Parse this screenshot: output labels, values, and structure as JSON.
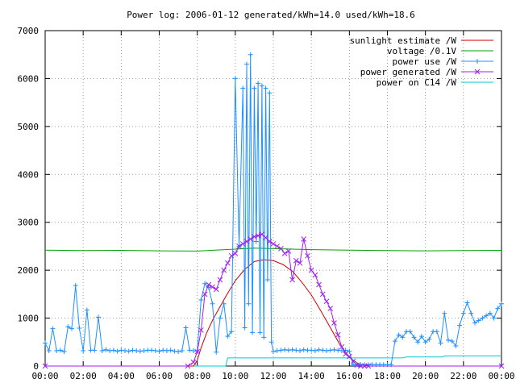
{
  "chart_data": {
    "type": "line",
    "title": "Power log: 2006-01-12 generated/kWh=14.0 used/kWh=18.6",
    "xlim": [
      0,
      24
    ],
    "ylim": [
      0,
      7000
    ],
    "xticks": [
      0,
      2,
      4,
      6,
      8,
      10,
      12,
      14,
      16,
      18,
      20,
      22,
      24
    ],
    "xtick_labels": [
      "00:00",
      "02:00",
      "04:00",
      "06:00",
      "08:00",
      "10:00",
      "12:00",
      "14:00",
      "16:00",
      "18:00",
      "20:00",
      "22:00",
      "00:00"
    ],
    "yticks": [
      0,
      1000,
      2000,
      3000,
      4000,
      5000,
      6000,
      7000
    ],
    "ytick_labels": [
      "0",
      "1000",
      "2000",
      "3000",
      "4000",
      "5000",
      "6000",
      "7000"
    ],
    "legend_position": "top-right",
    "series": [
      {
        "name": "sunlight estimate /W",
        "color": "#cc0000",
        "marker": "none",
        "x": [
          0,
          7.8,
          8.0,
          8.2,
          8.5,
          8.8,
          9.0,
          9.5,
          10.0,
          10.5,
          11.0,
          11.5,
          12.0,
          12.5,
          13.0,
          13.5,
          14.0,
          14.5,
          15.0,
          15.5,
          16.0,
          16.5,
          17.0,
          24
        ],
        "y": [
          0,
          0,
          120,
          380,
          700,
          950,
          1100,
          1450,
          1780,
          2020,
          2180,
          2220,
          2200,
          2120,
          1980,
          1750,
          1480,
          1150,
          800,
          450,
          180,
          40,
          0,
          0
        ]
      },
      {
        "name": "voltage /0.1V",
        "color": "#00a000",
        "marker": "none",
        "x": [
          0,
          2,
          4,
          6,
          8,
          10,
          11,
          12,
          13,
          14,
          16,
          18,
          20,
          22,
          24
        ],
        "y": [
          2420,
          2410,
          2415,
          2405,
          2400,
          2440,
          2460,
          2450,
          2440,
          2430,
          2420,
          2410,
          2405,
          2410,
          2415
        ]
      },
      {
        "name": "power use /W",
        "color": "#1e90ff",
        "marker": "plus",
        "x": [
          0.0,
          0.2,
          0.4,
          0.6,
          0.8,
          1.0,
          1.2,
          1.4,
          1.6,
          1.8,
          2.0,
          2.2,
          2.4,
          2.6,
          2.8,
          3.0,
          3.2,
          3.4,
          3.6,
          3.8,
          4.0,
          4.2,
          4.4,
          4.6,
          4.8,
          5.0,
          5.2,
          5.4,
          5.6,
          5.8,
          6.0,
          6.2,
          6.4,
          6.6,
          6.8,
          7.0,
          7.2,
          7.4,
          7.6,
          7.8,
          8.0,
          8.2,
          8.4,
          8.6,
          8.8,
          9.0,
          9.2,
          9.4,
          9.6,
          9.8,
          10.0,
          10.2,
          10.4,
          10.5,
          10.6,
          10.7,
          10.8,
          10.9,
          11.0,
          11.1,
          11.2,
          11.3,
          11.4,
          11.5,
          11.6,
          11.7,
          11.8,
          11.9,
          12.0,
          12.2,
          12.4,
          12.6,
          12.8,
          13.0,
          13.2,
          13.4,
          13.6,
          13.8,
          14.0,
          14.2,
          14.4,
          14.6,
          14.8,
          15.0,
          15.2,
          15.4,
          15.6,
          15.8,
          16.0,
          16.2,
          16.4,
          16.6,
          16.8,
          17.0,
          17.2,
          17.4,
          17.6,
          17.8,
          18.0,
          18.2,
          18.4,
          18.6,
          18.8,
          19.0,
          19.2,
          19.4,
          19.6,
          19.8,
          20.0,
          20.2,
          20.4,
          20.6,
          20.8,
          21.0,
          21.2,
          21.4,
          21.6,
          21.8,
          22.0,
          22.2,
          22.4,
          22.6,
          22.8,
          23.0,
          23.2,
          23.4,
          23.6,
          23.8,
          24.0
        ],
        "y": [
          480,
          320,
          780,
          320,
          330,
          300,
          820,
          780,
          1680,
          790,
          320,
          1170,
          330,
          330,
          1020,
          320,
          340,
          320,
          330,
          310,
          330,
          320,
          310,
          330,
          320,
          310,
          320,
          330,
          330,
          320,
          310,
          330,
          320,
          330,
          310,
          300,
          320,
          800,
          330,
          320,
          310,
          1380,
          1720,
          1640,
          1300,
          290,
          1000,
          1300,
          620,
          720,
          6000,
          2500,
          5800,
          800,
          6300,
          1300,
          6500,
          700,
          5800,
          2600,
          5900,
          700,
          5850,
          600,
          5800,
          1800,
          5700,
          500,
          300,
          320,
          330,
          340,
          330,
          340,
          330,
          320,
          340,
          330,
          330,
          320,
          340,
          330,
          320,
          330,
          340,
          330,
          320,
          330,
          310,
          30,
          30,
          30,
          30,
          30,
          30,
          30,
          30,
          30,
          30,
          30,
          520,
          650,
          600,
          720,
          720,
          600,
          500,
          620,
          500,
          560,
          720,
          720,
          480,
          1100,
          540,
          520,
          420,
          850,
          1100,
          1320,
          1100,
          900,
          950,
          1000,
          1050,
          1100,
          1000,
          1200,
          1300
        ]
      },
      {
        "name": "power generated /W",
        "color": "#a020f0",
        "marker": "cross",
        "x": [
          0,
          7.5,
          7.8,
          8.0,
          8.2,
          8.4,
          8.6,
          8.8,
          9.0,
          9.2,
          9.4,
          9.6,
          9.8,
          10.0,
          10.2,
          10.4,
          10.6,
          10.8,
          11.0,
          11.2,
          11.4,
          11.6,
          11.8,
          12.0,
          12.2,
          12.4,
          12.6,
          12.8,
          13.0,
          13.2,
          13.4,
          13.6,
          13.8,
          14.0,
          14.2,
          14.4,
          14.6,
          14.8,
          15.0,
          15.2,
          15.4,
          15.6,
          15.8,
          16.0,
          16.2,
          16.4,
          16.6,
          16.8,
          17.0,
          24
        ],
        "y": [
          0,
          0,
          80,
          300,
          750,
          1500,
          1700,
          1650,
          1600,
          1800,
          2000,
          2150,
          2300,
          2350,
          2500,
          2550,
          2600,
          2650,
          2700,
          2720,
          2750,
          2680,
          2600,
          2550,
          2500,
          2450,
          2350,
          2400,
          1800,
          2200,
          2150,
          2650,
          2300,
          2000,
          1900,
          1700,
          1500,
          1350,
          1200,
          900,
          650,
          400,
          250,
          200,
          100,
          20,
          0,
          0,
          0,
          0
        ]
      },
      {
        "name": "power on C14 /W",
        "color": "#00cccc",
        "marker": "none",
        "x": [
          0,
          9.5,
          9.6,
          18.8,
          19.0,
          20.9,
          21.0,
          24
        ],
        "y": [
          0,
          0,
          170,
          170,
          190,
          190,
          210,
          210
        ]
      }
    ]
  }
}
